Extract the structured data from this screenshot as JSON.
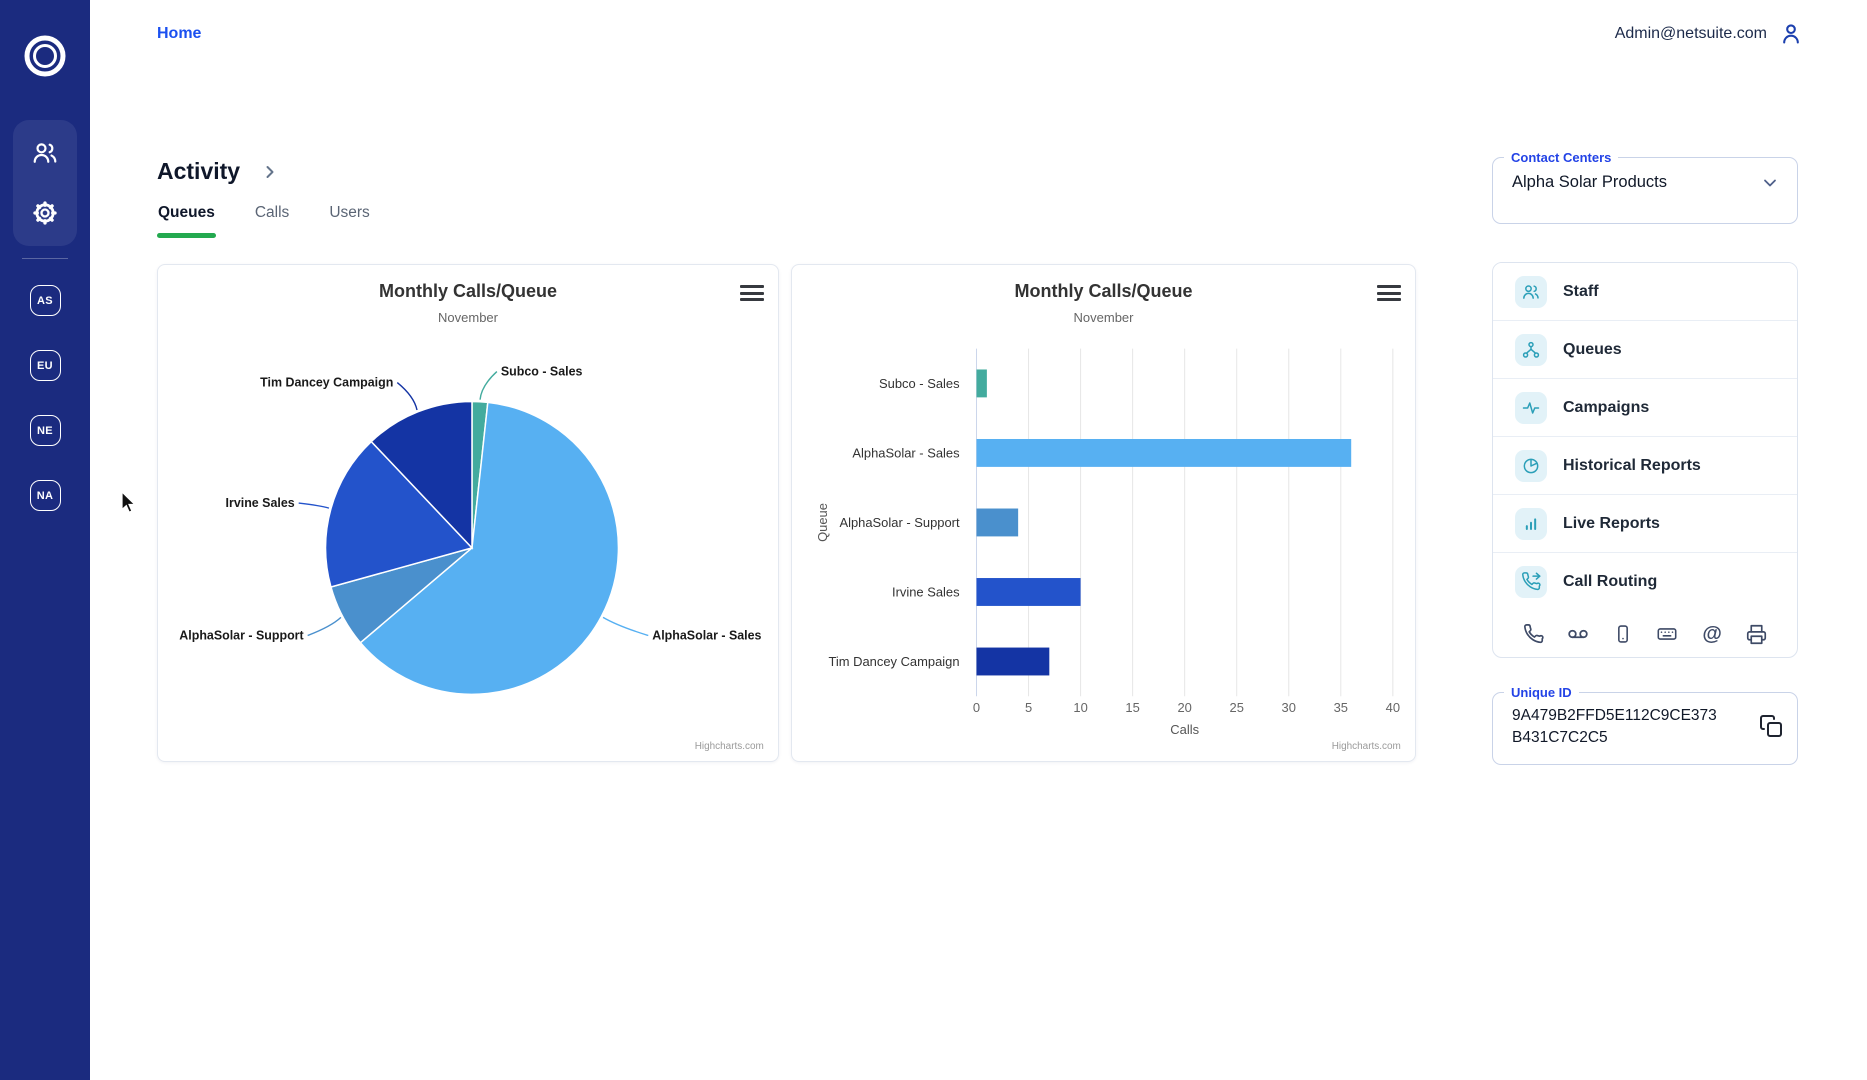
{
  "header": {
    "home_label": "Home",
    "account_email": "Admin@netsuite.com"
  },
  "sidebar": {
    "workspaces": [
      {
        "label": "AS"
      },
      {
        "label": "EU"
      },
      {
        "label": "NE"
      },
      {
        "label": "NA"
      }
    ]
  },
  "page": {
    "title": "Activity",
    "tabs": [
      {
        "label": "Queues",
        "active": true
      },
      {
        "label": "Calls",
        "active": false
      },
      {
        "label": "Users",
        "active": false
      }
    ]
  },
  "contact_centers": {
    "label": "Contact Centers",
    "selected": "Alpha Solar Products"
  },
  "side_menu": {
    "items": [
      {
        "label": "Staff",
        "icon": "staff-icon"
      },
      {
        "label": "Queues",
        "icon": "queues-icon"
      },
      {
        "label": "Campaigns",
        "icon": "campaigns-icon"
      },
      {
        "label": "Historical Reports",
        "icon": "historical-reports-icon"
      },
      {
        "label": "Live Reports",
        "icon": "live-reports-icon"
      },
      {
        "label": "Call Routing",
        "icon": "call-routing-icon"
      }
    ],
    "quick_icons": [
      "phone-icon",
      "voicemail-icon",
      "mobile-icon",
      "keyboard-icon",
      "at-icon",
      "printer-icon"
    ]
  },
  "unique_id": {
    "label": "Unique ID",
    "value": "9A479B2FFD5E112C9CE373B431C7C2C5"
  },
  "credits": "Highcharts.com",
  "colors": {
    "sidebar_navy": "#1b2b7f",
    "accent_blue": "#1b50f0",
    "legend_blue": "#2343e6",
    "tab_green": "#23a94f",
    "teal_icon": "#2b9fb8"
  },
  "chart_data": [
    {
      "type": "pie",
      "title": "Monthly Calls/Queue",
      "subtitle": "November",
      "series": [
        {
          "name": "Calls",
          "points": [
            {
              "name": "Subco - Sales",
              "y": 1,
              "color": "#43ab9e"
            },
            {
              "name": "AlphaSolar - Sales",
              "y": 36,
              "color": "#57b0f2"
            },
            {
              "name": "AlphaSolar - Support",
              "y": 4,
              "color": "#4a90cd"
            },
            {
              "name": "Irvine Sales",
              "y": 10,
              "color": "#2353cb"
            },
            {
              "name": "Tim Dancey Campaign",
              "y": 7,
              "color": "#1434a4"
            }
          ]
        }
      ],
      "legend": "none",
      "label_position": "outside-with-connectors"
    },
    {
      "type": "bar",
      "title": "Monthly Calls/Queue",
      "subtitle": "November",
      "categories": [
        "Subco - Sales",
        "AlphaSolar - Sales",
        "AlphaSolar - Support",
        "Irvine Sales",
        "Tim Dancey Campaign"
      ],
      "values": [
        1,
        36,
        4,
        10,
        7
      ],
      "colors": [
        "#43ab9e",
        "#57b0f2",
        "#4a90cd",
        "#2353cb",
        "#1434a4"
      ],
      "xlabel": "Calls",
      "ylabel": "Queue",
      "xlim": [
        0,
        40
      ],
      "tick_step": 5,
      "grid": true,
      "legend": "none"
    }
  ]
}
